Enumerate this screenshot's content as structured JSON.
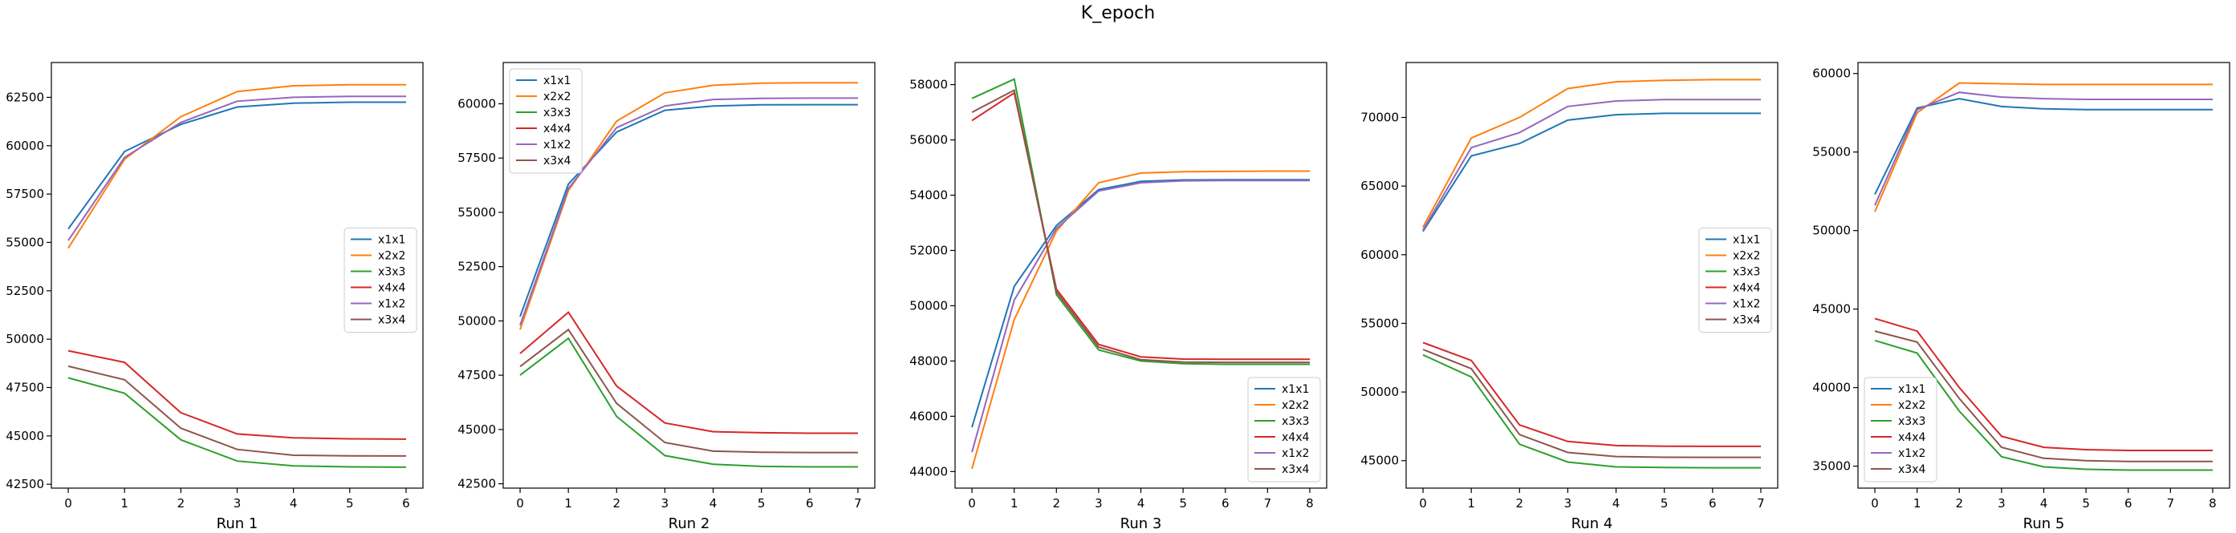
{
  "figure": {
    "suptitle": "K_epoch",
    "colors": {
      "x1x1": "#1f77b4",
      "x2x2": "#ff7f0e",
      "x3x3": "#2ca02c",
      "x4x4": "#d62728",
      "x1x2": "#9467bd",
      "x3x4": "#8c564b"
    }
  },
  "chart_data": [
    {
      "type": "line",
      "xlabel": "Run 1",
      "x": [
        0,
        1,
        2,
        3,
        4,
        5,
        6
      ],
      "xticks": [
        "0",
        "1",
        "2",
        "3",
        "4",
        "5",
        "6"
      ],
      "yticks": [
        "42500",
        "45000",
        "47500",
        "50000",
        "52500",
        "55000",
        "57500",
        "60000",
        "62500"
      ],
      "xlim": [
        -0.3,
        6.3
      ],
      "ylim": [
        42300,
        64300
      ],
      "legend_position": "center-right",
      "series": [
        {
          "name": "x1x1",
          "values": [
            55700,
            59700,
            61100,
            62000,
            62200,
            62250,
            62250
          ]
        },
        {
          "name": "x2x2",
          "values": [
            54700,
            59300,
            61500,
            62800,
            63100,
            63150,
            63150
          ]
        },
        {
          "name": "x3x3",
          "values": [
            48000,
            47200,
            44800,
            43700,
            43450,
            43400,
            43380
          ]
        },
        {
          "name": "x4x4",
          "values": [
            49400,
            48800,
            46200,
            45100,
            44900,
            44850,
            44830
          ]
        },
        {
          "name": "x1x2",
          "values": [
            55100,
            59400,
            61200,
            62300,
            62500,
            62550,
            62550
          ]
        },
        {
          "name": "x3x4",
          "values": [
            48600,
            47900,
            45400,
            44300,
            44000,
            43970,
            43960
          ]
        }
      ]
    },
    {
      "type": "line",
      "xlabel": "Run 2",
      "x": [
        0,
        1,
        2,
        3,
        4,
        5,
        6,
        7
      ],
      "xticks": [
        "0",
        "1",
        "2",
        "3",
        "4",
        "5",
        "6",
        "7"
      ],
      "yticks": [
        "42500",
        "45000",
        "47500",
        "50000",
        "52500",
        "55000",
        "57500",
        "60000"
      ],
      "xlim": [
        -0.35,
        7.35
      ],
      "ylim": [
        42300,
        61900
      ],
      "legend_position": "upper-left",
      "series": [
        {
          "name": "x1x1",
          "values": [
            50200,
            56300,
            58700,
            59700,
            59900,
            59950,
            59960,
            59960
          ]
        },
        {
          "name": "x2x2",
          "values": [
            49600,
            56000,
            59200,
            60500,
            60850,
            60950,
            60970,
            60970
          ]
        },
        {
          "name": "x3x3",
          "values": [
            47500,
            49200,
            45600,
            43800,
            43400,
            43300,
            43280,
            43280
          ]
        },
        {
          "name": "x4x4",
          "values": [
            48500,
            50400,
            47000,
            45300,
            44900,
            44850,
            44830,
            44830
          ]
        },
        {
          "name": "x1x2",
          "values": [
            49800,
            56100,
            58900,
            59900,
            60200,
            60250,
            60260,
            60260
          ]
        },
        {
          "name": "x3x4",
          "values": [
            47900,
            49600,
            46200,
            44400,
            44000,
            43950,
            43940,
            43940
          ]
        }
      ]
    },
    {
      "type": "line",
      "xlabel": "Run 3",
      "x": [
        0,
        1,
        2,
        3,
        4,
        5,
        6,
        7,
        8
      ],
      "xticks": [
        "0",
        "1",
        "2",
        "3",
        "4",
        "5",
        "6",
        "7",
        "8"
      ],
      "yticks": [
        "44000",
        "46000",
        "48000",
        "50000",
        "52000",
        "54000",
        "56000",
        "58000"
      ],
      "xlim": [
        -0.4,
        8.4
      ],
      "ylim": [
        43400,
        58800
      ],
      "legend_position": "lower-right",
      "series": [
        {
          "name": "x1x1",
          "values": [
            45600,
            50700,
            52900,
            54200,
            54500,
            54550,
            54560,
            54560,
            54560
          ]
        },
        {
          "name": "x2x2",
          "values": [
            44100,
            49500,
            52700,
            54450,
            54800,
            54850,
            54860,
            54870,
            54870
          ]
        },
        {
          "name": "x3x3",
          "values": [
            57500,
            58200,
            50400,
            48400,
            48000,
            47900,
            47880,
            47880,
            47880
          ]
        },
        {
          "name": "x4x4",
          "values": [
            56700,
            57700,
            50600,
            48600,
            48150,
            48070,
            48060,
            48060,
            48060
          ]
        },
        {
          "name": "x1x2",
          "values": [
            44700,
            50200,
            52800,
            54150,
            54450,
            54520,
            54530,
            54530,
            54530
          ]
        },
        {
          "name": "x3x4",
          "values": [
            57000,
            57800,
            50500,
            48500,
            48050,
            47960,
            47950,
            47950,
            47950
          ]
        }
      ]
    },
    {
      "type": "line",
      "xlabel": "Run 4",
      "x": [
        0,
        1,
        2,
        3,
        4,
        5,
        6,
        7
      ],
      "xticks": [
        "0",
        "1",
        "2",
        "3",
        "4",
        "5",
        "6",
        "7"
      ],
      "yticks": [
        "45000",
        "50000",
        "55000",
        "60000",
        "65000",
        "70000"
      ],
      "xlim": [
        -0.35,
        7.35
      ],
      "ylim": [
        43000,
        74000
      ],
      "legend_position": "center-right",
      "series": [
        {
          "name": "x1x1",
          "values": [
            61700,
            67200,
            68100,
            69800,
            70200,
            70300,
            70300,
            70300
          ]
        },
        {
          "name": "x2x2",
          "values": [
            62000,
            68500,
            70000,
            72100,
            72600,
            72700,
            72750,
            72750
          ]
        },
        {
          "name": "x3x3",
          "values": [
            52700,
            51100,
            46200,
            44900,
            44550,
            44500,
            44480,
            44480
          ]
        },
        {
          "name": "x4x4",
          "values": [
            53600,
            52300,
            47600,
            46400,
            46100,
            46050,
            46040,
            46040
          ]
        },
        {
          "name": "x1x2",
          "values": [
            61800,
            67800,
            68900,
            70800,
            71200,
            71300,
            71300,
            71300
          ]
        },
        {
          "name": "x3x4",
          "values": [
            53100,
            51700,
            46900,
            45600,
            45300,
            45250,
            45240,
            45240
          ]
        }
      ]
    },
    {
      "type": "line",
      "xlabel": "Run 5",
      "x": [
        0,
        1,
        2,
        3,
        4,
        5,
        6,
        7,
        8
      ],
      "xticks": [
        "0",
        "1",
        "2",
        "3",
        "4",
        "5",
        "6",
        "7",
        "8"
      ],
      "yticks": [
        "35000",
        "40000",
        "45000",
        "50000",
        "55000",
        "60000"
      ],
      "xlim": [
        -0.4,
        8.4
      ],
      "ylim": [
        33600,
        60700
      ],
      "legend_position": "lower-left",
      "series": [
        {
          "name": "x1x1",
          "values": [
            52300,
            57800,
            58400,
            57900,
            57750,
            57700,
            57700,
            57700,
            57700
          ]
        },
        {
          "name": "x2x2",
          "values": [
            51200,
            57500,
            59400,
            59350,
            59300,
            59300,
            59300,
            59300,
            59300
          ]
        },
        {
          "name": "x3x3",
          "values": [
            43000,
            42200,
            38500,
            35600,
            34950,
            34800,
            34750,
            34750,
            34750
          ]
        },
        {
          "name": "x4x4",
          "values": [
            44400,
            43600,
            40000,
            36900,
            36200,
            36050,
            36000,
            36000,
            36000
          ]
        },
        {
          "name": "x1x2",
          "values": [
            51600,
            57700,
            58800,
            58500,
            58400,
            58350,
            58350,
            58350,
            58350
          ]
        },
        {
          "name": "x3x4",
          "values": [
            43600,
            42900,
            39300,
            36200,
            35500,
            35350,
            35300,
            35300,
            35300
          ]
        }
      ]
    }
  ]
}
